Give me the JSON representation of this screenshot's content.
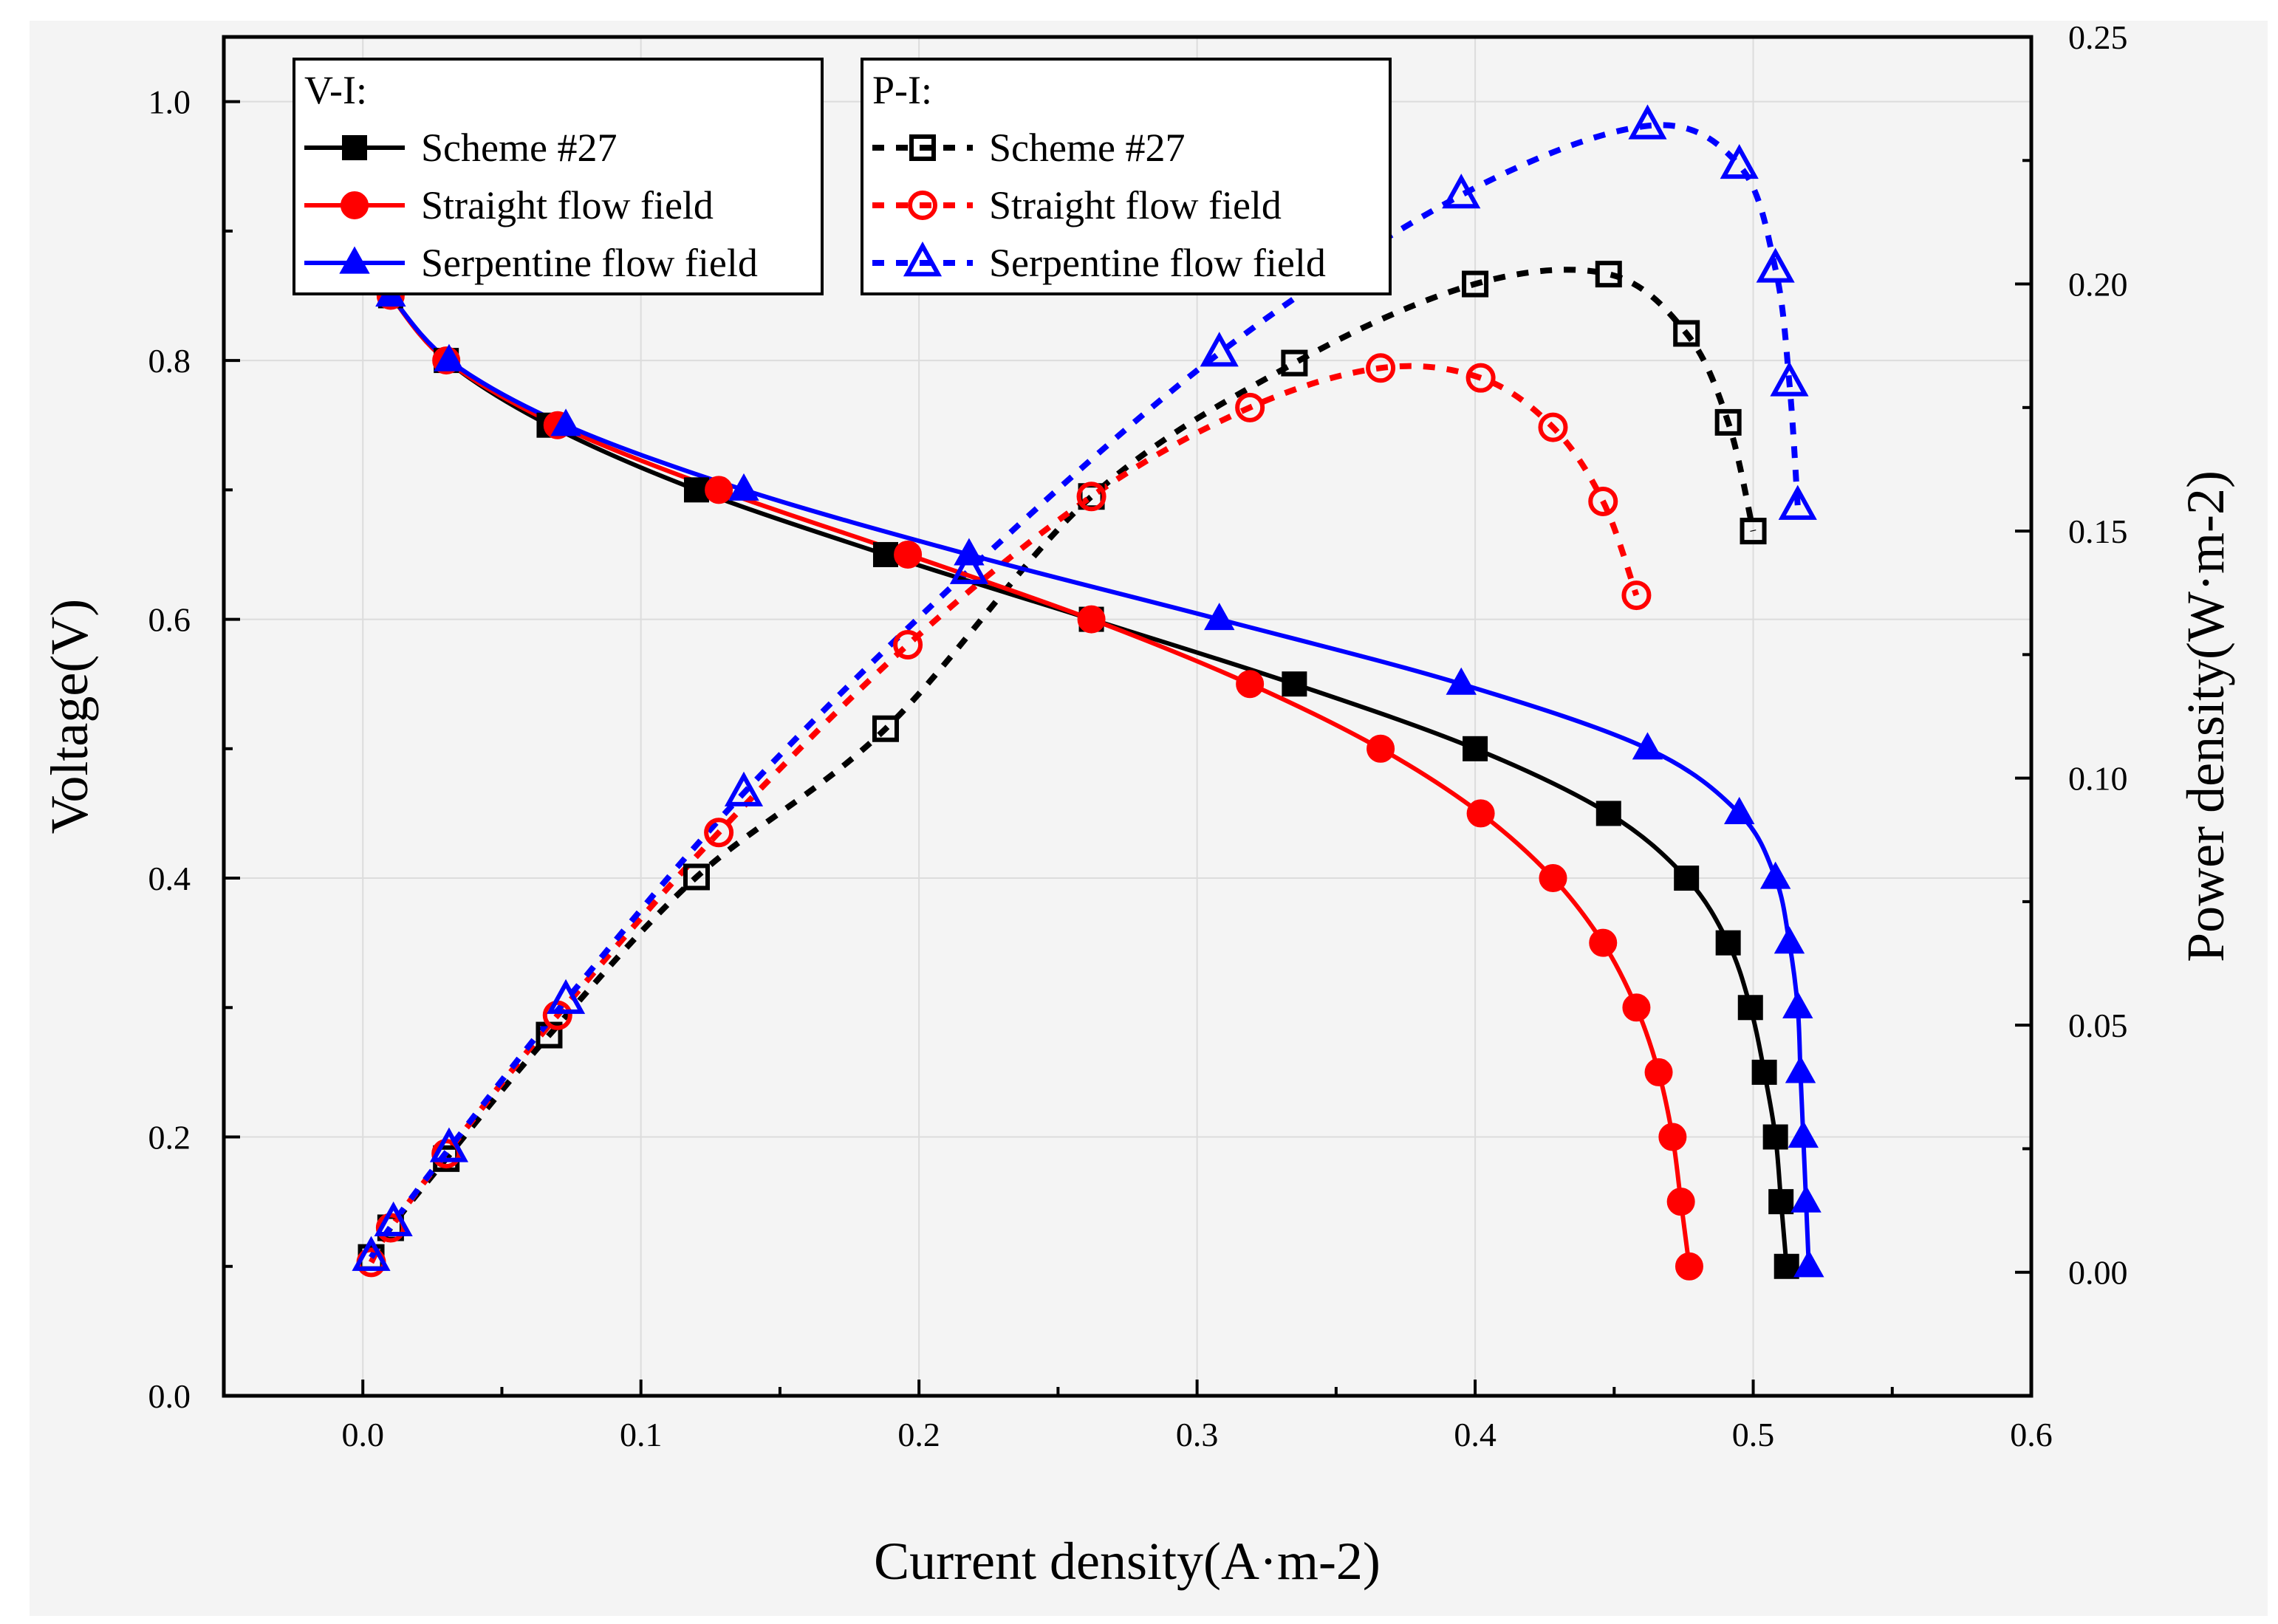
{
  "chart_data": {
    "type": "line",
    "xlabel": "Current density(A·m-2)",
    "ylabel": "Voltage(V)",
    "y2label": "Power density(W·m-2)",
    "xlim": [
      -0.05,
      0.6
    ],
    "ylim": [
      0.0,
      1.05
    ],
    "y2lim": [
      -0.025,
      0.25
    ],
    "xticks": [
      "0.0",
      "0.1",
      "0.2",
      "0.3",
      "0.4",
      "0.5",
      "0.6"
    ],
    "yticks": [
      "0.0",
      "0.2",
      "0.4",
      "0.6",
      "0.8",
      "1.0"
    ],
    "y2ticks": [
      "0.00",
      "0.05",
      "0.10",
      "0.15",
      "0.20",
      "0.25"
    ],
    "grid": true,
    "legend_vi_title": "V-I:",
    "legend_pi_title": "P-I:",
    "vi_series": [
      {
        "name": "Scheme #27",
        "color": "#000000",
        "marker": "square",
        "x": [
          0.01,
          0.03,
          0.067,
          0.12,
          0.188,
          0.262,
          0.335,
          0.4,
          0.448,
          0.476,
          0.491,
          0.499,
          0.504,
          0.508,
          0.51,
          0.512
        ],
        "y": [
          0.85,
          0.8,
          0.75,
          0.7,
          0.65,
          0.6,
          0.55,
          0.5,
          0.45,
          0.4,
          0.35,
          0.3,
          0.25,
          0.2,
          0.15,
          0.1
        ]
      },
      {
        "name": "Straight flow field",
        "color": "#ff0000",
        "marker": "circle",
        "x": [
          0.01,
          0.03,
          0.07,
          0.128,
          0.196,
          0.262,
          0.319,
          0.366,
          0.402,
          0.428,
          0.446,
          0.458,
          0.466,
          0.471,
          0.474,
          0.477
        ],
        "y": [
          0.85,
          0.8,
          0.75,
          0.7,
          0.65,
          0.6,
          0.55,
          0.5,
          0.45,
          0.4,
          0.35,
          0.3,
          0.25,
          0.2,
          0.15,
          0.1
        ]
      },
      {
        "name": "Serpentine flow field",
        "color": "#0000ff",
        "marker": "triangle",
        "x": [
          0.01,
          0.031,
          0.073,
          0.137,
          0.218,
          0.308,
          0.395,
          0.462,
          0.495,
          0.508,
          0.513,
          0.516,
          0.517,
          0.518,
          0.519,
          0.52
        ],
        "y": [
          0.85,
          0.8,
          0.75,
          0.7,
          0.65,
          0.6,
          0.55,
          0.5,
          0.45,
          0.4,
          0.35,
          0.3,
          0.25,
          0.2,
          0.15,
          0.1
        ]
      }
    ],
    "pi_series": [
      {
        "name": "Scheme #27",
        "color": "#000000",
        "marker": "square",
        "x": [
          0.003,
          0.01,
          0.03,
          0.067,
          0.12,
          0.188,
          0.262,
          0.335,
          0.4,
          0.448,
          0.476,
          0.491,
          0.5
        ],
        "y": [
          0.003,
          0.009,
          0.023,
          0.048,
          0.08,
          0.11,
          0.157,
          0.184,
          0.2,
          0.202,
          0.19,
          0.172,
          0.15
        ]
      },
      {
        "name": "Straight flow field",
        "color": "#ff0000",
        "marker": "circle",
        "x": [
          0.003,
          0.01,
          0.03,
          0.07,
          0.128,
          0.196,
          0.262,
          0.319,
          0.366,
          0.402,
          0.428,
          0.446,
          0.458
        ],
        "y": [
          0.002,
          0.009,
          0.024,
          0.052,
          0.089,
          0.127,
          0.157,
          0.175,
          0.183,
          0.181,
          0.171,
          0.156,
          0.137
        ]
      },
      {
        "name": "Serpentine flow field",
        "color": "#0000ff",
        "marker": "triangle",
        "x": [
          0.003,
          0.011,
          0.031,
          0.073,
          0.137,
          0.218,
          0.308,
          0.395,
          0.462,
          0.495,
          0.508,
          0.513,
          0.516
        ],
        "y": [
          0.003,
          0.01,
          0.025,
          0.055,
          0.097,
          0.142,
          0.186,
          0.218,
          0.232,
          0.224,
          0.203,
          0.18,
          0.155
        ]
      }
    ]
  }
}
